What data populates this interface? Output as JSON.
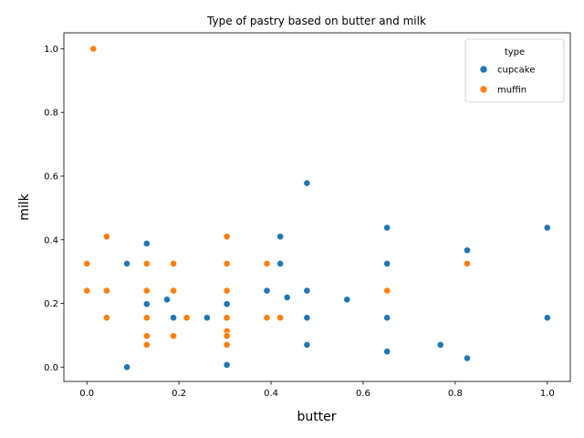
{
  "chart_data": {
    "type": "scatter",
    "title": "Type of pastry based on butter and milk",
    "xlabel": "butter",
    "ylabel": "milk",
    "xlim": [
      -0.05,
      1.05
    ],
    "ylim": [
      -0.045,
      1.05
    ],
    "xticks": [
      0.0,
      0.2,
      0.4,
      0.6,
      0.8,
      1.0
    ],
    "yticks": [
      0.0,
      0.2,
      0.4,
      0.6,
      0.8,
      1.0
    ],
    "xtick_labels": [
      "0.0",
      "0.2",
      "0.4",
      "0.6",
      "0.8",
      "1.0"
    ],
    "ytick_labels": [
      "0.0",
      "0.2",
      "0.4",
      "0.6",
      "0.8",
      "1.0"
    ],
    "grid": false,
    "legend": {
      "title": "type",
      "placement": "top-right"
    },
    "series": [
      {
        "name": "cupcake",
        "color": "#1f77b4",
        "points": [
          [
            0.087,
            0.0
          ],
          [
            0.087,
            0.325
          ],
          [
            0.13,
            0.388
          ],
          [
            0.13,
            0.198
          ],
          [
            0.174,
            0.212
          ],
          [
            0.188,
            0.155
          ],
          [
            0.261,
            0.155
          ],
          [
            0.304,
            0.198
          ],
          [
            0.304,
            0.007
          ],
          [
            0.391,
            0.24
          ],
          [
            0.42,
            0.41
          ],
          [
            0.42,
            0.325
          ],
          [
            0.435,
            0.219
          ],
          [
            0.478,
            0.578
          ],
          [
            0.478,
            0.24
          ],
          [
            0.478,
            0.155
          ],
          [
            0.478,
            0.07
          ],
          [
            0.565,
            0.212
          ],
          [
            0.652,
            0.438
          ],
          [
            0.652,
            0.325
          ],
          [
            0.652,
            0.155
          ],
          [
            0.652,
            0.049
          ],
          [
            0.768,
            0.07
          ],
          [
            0.826,
            0.367
          ],
          [
            0.826,
            0.028
          ],
          [
            1.0,
            0.438
          ],
          [
            1.0,
            0.155
          ]
        ]
      },
      {
        "name": "muffin",
        "color": "#ff7f0e",
        "points": [
          [
            0.0,
            0.325
          ],
          [
            0.0,
            0.24
          ],
          [
            0.014,
            1.0
          ],
          [
            0.043,
            0.41
          ],
          [
            0.043,
            0.24
          ],
          [
            0.043,
            0.155
          ],
          [
            0.13,
            0.325
          ],
          [
            0.13,
            0.24
          ],
          [
            0.13,
            0.155
          ],
          [
            0.13,
            0.098
          ],
          [
            0.13,
            0.07
          ],
          [
            0.188,
            0.325
          ],
          [
            0.188,
            0.24
          ],
          [
            0.188,
            0.098
          ],
          [
            0.217,
            0.155
          ],
          [
            0.304,
            0.41
          ],
          [
            0.304,
            0.325
          ],
          [
            0.304,
            0.24
          ],
          [
            0.304,
            0.155
          ],
          [
            0.304,
            0.113
          ],
          [
            0.304,
            0.098
          ],
          [
            0.304,
            0.07
          ],
          [
            0.391,
            0.325
          ],
          [
            0.391,
            0.155
          ],
          [
            0.42,
            0.155
          ],
          [
            0.652,
            0.24
          ],
          [
            0.826,
            0.325
          ]
        ]
      }
    ]
  }
}
